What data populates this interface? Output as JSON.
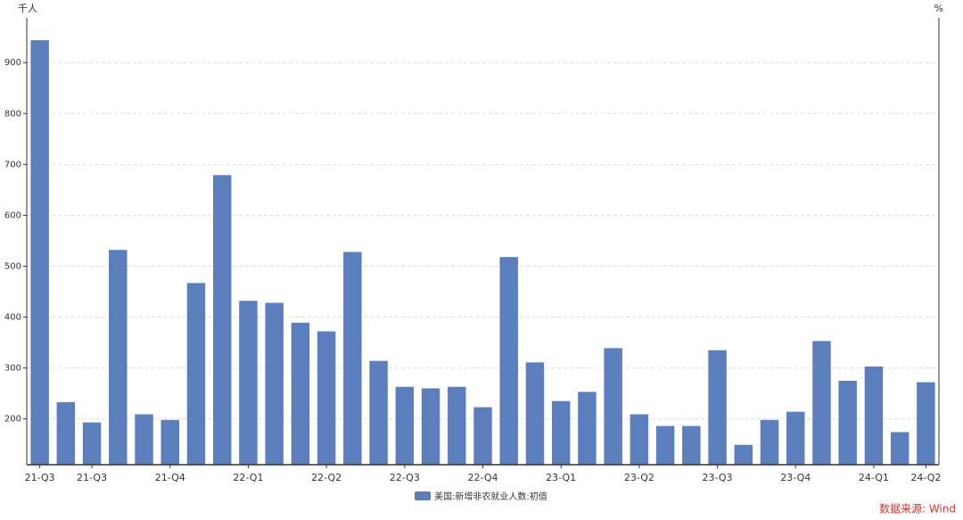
{
  "chart_data": {
    "type": "bar",
    "y_unit": "千人",
    "y2_unit": "%",
    "series": [
      {
        "name": "美国:新增非农就业人数:初值",
        "color": "#5b7fbd",
        "values": [
          944,
          233,
          193,
          532,
          209,
          198,
          467,
          679,
          432,
          428,
          389,
          372,
          528,
          314,
          263,
          260,
          263,
          223,
          518,
          311,
          235,
          253,
          339,
          209,
          186,
          186,
          335,
          149,
          198,
          214,
          353,
          275,
          303,
          174,
          272
        ]
      }
    ],
    "categories": [
      "21-Q3",
      null,
      "21-Q3",
      null,
      null,
      "21-Q4",
      null,
      null,
      "22-Q1",
      null,
      null,
      "22-Q2",
      null,
      null,
      "22-Q3",
      null,
      null,
      "22-Q4",
      null,
      null,
      "23-Q1",
      null,
      null,
      "23-Q2",
      null,
      null,
      "23-Q3",
      null,
      null,
      "23-Q4",
      null,
      null,
      "24-Q1",
      null,
      "24-Q2"
    ],
    "ylim": [
      110,
      988
    ],
    "yticks": [
      200,
      300,
      400,
      500,
      600,
      700,
      800,
      900
    ],
    "grid": true,
    "legend": "bottom",
    "source": "数据来源: Wind"
  }
}
